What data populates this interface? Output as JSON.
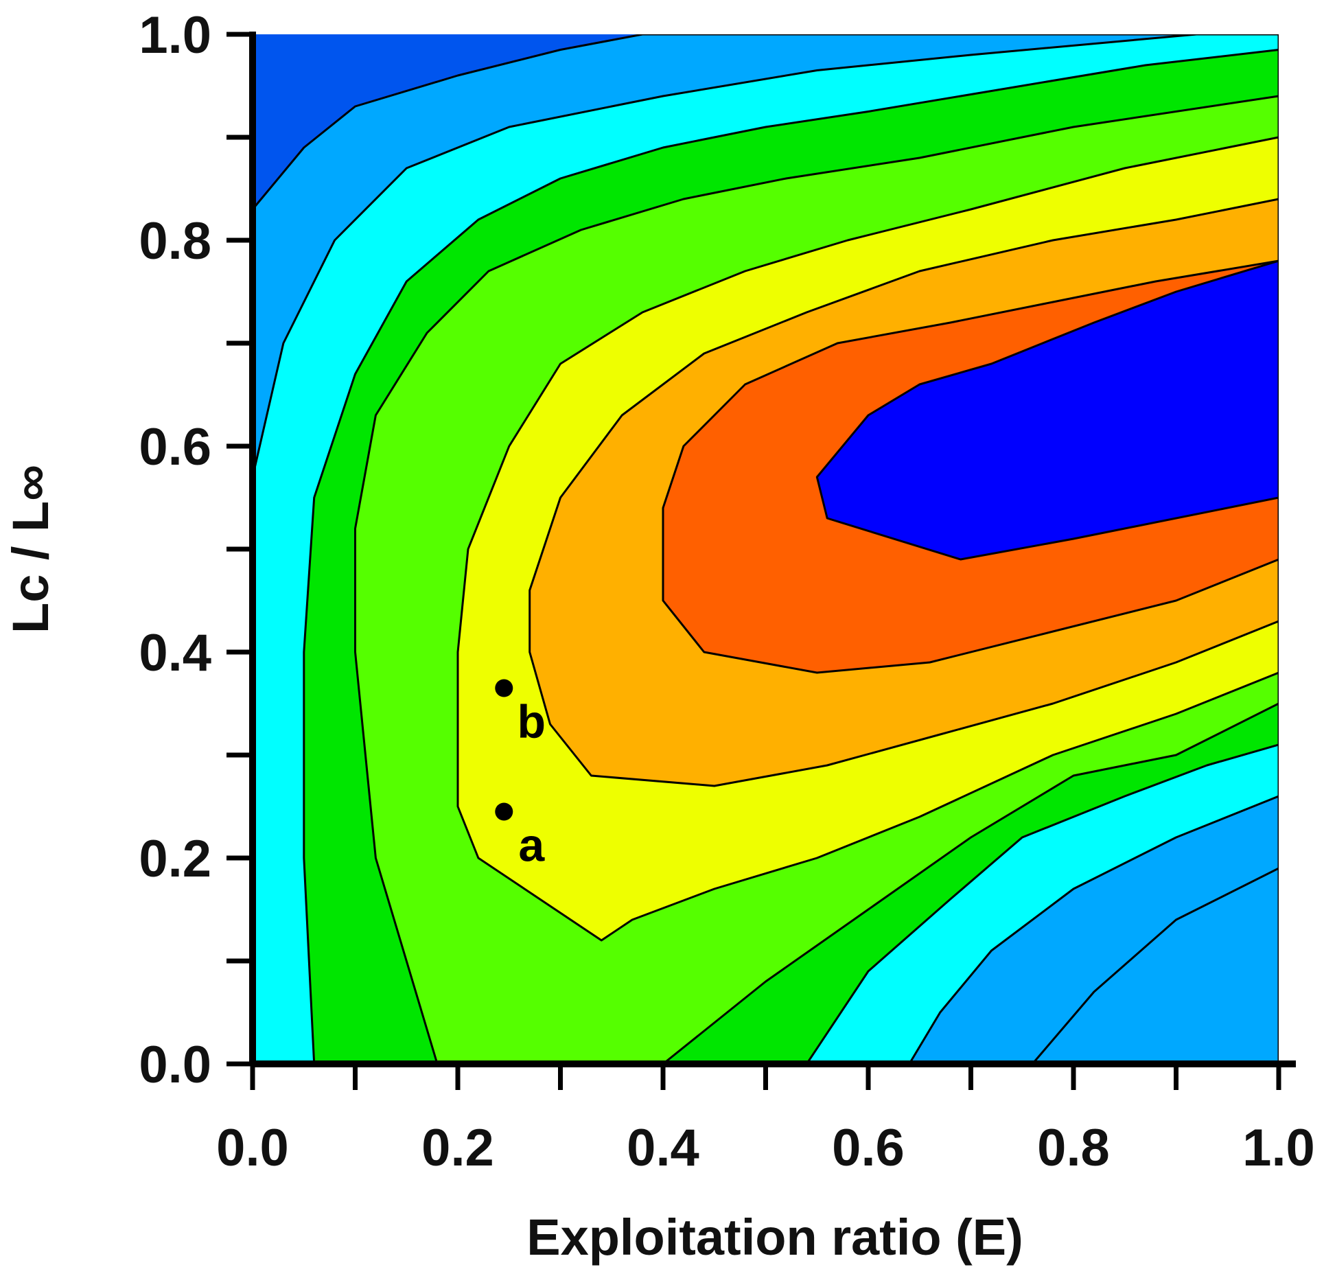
{
  "chart_data": {
    "type": "contour",
    "title": "",
    "xlabel": "Exploitation ratio (E)",
    "ylabel": "Lc / L∞",
    "xlim": [
      0.0,
      1.0
    ],
    "ylim": [
      0.0,
      1.0
    ],
    "xticks": [
      0.0,
      0.2,
      0.4,
      0.6,
      0.8,
      1.0
    ],
    "yticks": [
      0.0,
      0.2,
      0.4,
      0.6,
      0.8,
      1.0
    ],
    "xtick_labels": [
      "0.0",
      "0.2",
      "0.4",
      "0.6",
      "0.8",
      "1.0"
    ],
    "ytick_labels": [
      "0.0",
      "0.2",
      "0.4",
      "0.6",
      "0.8",
      "1.0"
    ],
    "minor_tick_step": 0.1,
    "grid": false,
    "colors": {
      "background": "#0000ff",
      "levels": [
        "#0055ee",
        "#00a8ff",
        "#00ffff",
        "#00e600",
        "#55ff00",
        "#eeff00",
        "#ffb000",
        "#ff6000"
      ],
      "contour_line": "#000000",
      "axis": "#000000"
    },
    "level_shapes": [
      [
        [
          0.0,
          0.0
        ],
        [
          1.0,
          0.0
        ],
        [
          1.0,
          1.0
        ],
        [
          0.0,
          1.0
        ]
      ],
      [
        [
          0.0,
          0.83
        ],
        [
          0.05,
          0.89
        ],
        [
          0.1,
          0.93
        ],
        [
          0.2,
          0.96
        ],
        [
          0.3,
          0.985
        ],
        [
          0.38,
          1.0
        ],
        [
          1.0,
          1.0
        ],
        [
          1.0,
          0.0
        ],
        [
          0.76,
          0.0
        ],
        [
          0.82,
          0.07
        ],
        [
          0.9,
          0.14
        ],
        [
          1.0,
          0.19
        ],
        [
          1.0,
          0.0
        ],
        [
          0.0,
          0.0
        ]
      ],
      [
        [
          0.0,
          0.57
        ],
        [
          0.03,
          0.7
        ],
        [
          0.08,
          0.8
        ],
        [
          0.15,
          0.87
        ],
        [
          0.25,
          0.91
        ],
        [
          0.4,
          0.94
        ],
        [
          0.55,
          0.965
        ],
        [
          0.7,
          0.98
        ],
        [
          0.92,
          1.0
        ],
        [
          1.0,
          1.0
        ],
        [
          1.0,
          0.26
        ],
        [
          0.9,
          0.22
        ],
        [
          0.8,
          0.17
        ],
        [
          0.72,
          0.11
        ],
        [
          0.67,
          0.05
        ],
        [
          0.64,
          0.0
        ],
        [
          0.0,
          0.0
        ]
      ],
      [
        [
          0.06,
          0.0
        ],
        [
          0.05,
          0.2
        ],
        [
          0.05,
          0.4
        ],
        [
          0.06,
          0.55
        ],
        [
          0.1,
          0.67
        ],
        [
          0.15,
          0.76
        ],
        [
          0.22,
          0.82
        ],
        [
          0.3,
          0.86
        ],
        [
          0.4,
          0.89
        ],
        [
          0.5,
          0.91
        ],
        [
          0.6,
          0.925
        ],
        [
          0.75,
          0.95
        ],
        [
          0.87,
          0.97
        ],
        [
          1.0,
          0.985
        ],
        [
          1.0,
          0.31
        ],
        [
          0.93,
          0.29
        ],
        [
          0.85,
          0.26
        ],
        [
          0.75,
          0.22
        ],
        [
          0.68,
          0.16
        ],
        [
          0.6,
          0.09
        ],
        [
          0.54,
          0.0
        ]
      ],
      [
        [
          0.18,
          0.0
        ],
        [
          0.12,
          0.2
        ],
        [
          0.1,
          0.4
        ],
        [
          0.1,
          0.52
        ],
        [
          0.12,
          0.63
        ],
        [
          0.17,
          0.71
        ],
        [
          0.23,
          0.77
        ],
        [
          0.32,
          0.81
        ],
        [
          0.42,
          0.84
        ],
        [
          0.52,
          0.86
        ],
        [
          0.65,
          0.88
        ],
        [
          0.8,
          0.91
        ],
        [
          1.0,
          0.94
        ],
        [
          1.0,
          0.35
        ],
        [
          0.9,
          0.3
        ],
        [
          0.8,
          0.28
        ],
        [
          0.7,
          0.22
        ],
        [
          0.6,
          0.15
        ],
        [
          0.5,
          0.08
        ],
        [
          0.4,
          0.0
        ]
      ],
      [
        [
          0.34,
          0.12
        ],
        [
          0.22,
          0.2
        ],
        [
          0.2,
          0.25
        ],
        [
          0.2,
          0.4
        ],
        [
          0.21,
          0.5
        ],
        [
          0.25,
          0.6
        ],
        [
          0.3,
          0.68
        ],
        [
          0.38,
          0.73
        ],
        [
          0.48,
          0.77
        ],
        [
          0.58,
          0.8
        ],
        [
          0.7,
          0.83
        ],
        [
          0.85,
          0.87
        ],
        [
          1.0,
          0.9
        ],
        [
          1.0,
          0.38
        ],
        [
          0.9,
          0.34
        ],
        [
          0.78,
          0.3
        ],
        [
          0.65,
          0.24
        ],
        [
          0.55,
          0.2
        ],
        [
          0.45,
          0.17
        ],
        [
          0.37,
          0.14
        ]
      ],
      [
        [
          0.45,
          0.27
        ],
        [
          0.33,
          0.28
        ],
        [
          0.29,
          0.33
        ],
        [
          0.27,
          0.4
        ],
        [
          0.27,
          0.46
        ],
        [
          0.3,
          0.55
        ],
        [
          0.36,
          0.63
        ],
        [
          0.44,
          0.69
        ],
        [
          0.54,
          0.73
        ],
        [
          0.65,
          0.77
        ],
        [
          0.78,
          0.8
        ],
        [
          0.9,
          0.82
        ],
        [
          1.0,
          0.84
        ],
        [
          1.0,
          0.43
        ],
        [
          0.9,
          0.39
        ],
        [
          0.78,
          0.35
        ],
        [
          0.67,
          0.32
        ],
        [
          0.56,
          0.29
        ]
      ],
      [
        [
          0.55,
          0.38
        ],
        [
          0.44,
          0.4
        ],
        [
          0.4,
          0.45
        ],
        [
          0.4,
          0.54
        ],
        [
          0.42,
          0.6
        ],
        [
          0.48,
          0.66
        ],
        [
          0.57,
          0.7
        ],
        [
          0.68,
          0.72
        ],
        [
          0.78,
          0.74
        ],
        [
          0.88,
          0.76
        ],
        [
          1.0,
          0.78
        ],
        [
          1.0,
          0.49
        ],
        [
          0.9,
          0.45
        ],
        [
          0.78,
          0.42
        ],
        [
          0.66,
          0.39
        ]
      ],
      [
        [
          0.69,
          0.49
        ],
        [
          0.56,
          0.53
        ],
        [
          0.55,
          0.57
        ],
        [
          0.6,
          0.63
        ],
        [
          0.65,
          0.66
        ],
        [
          0.72,
          0.68
        ],
        [
          0.82,
          0.72
        ],
        [
          0.9,
          0.75
        ],
        [
          1.0,
          0.78
        ],
        [
          1.0,
          0.55
        ],
        [
          0.9,
          0.53
        ],
        [
          0.8,
          0.51
        ]
      ]
    ],
    "points": [
      {
        "label": "a",
        "x": 0.245,
        "y": 0.245
      },
      {
        "label": "b",
        "x": 0.245,
        "y": 0.365
      }
    ]
  }
}
